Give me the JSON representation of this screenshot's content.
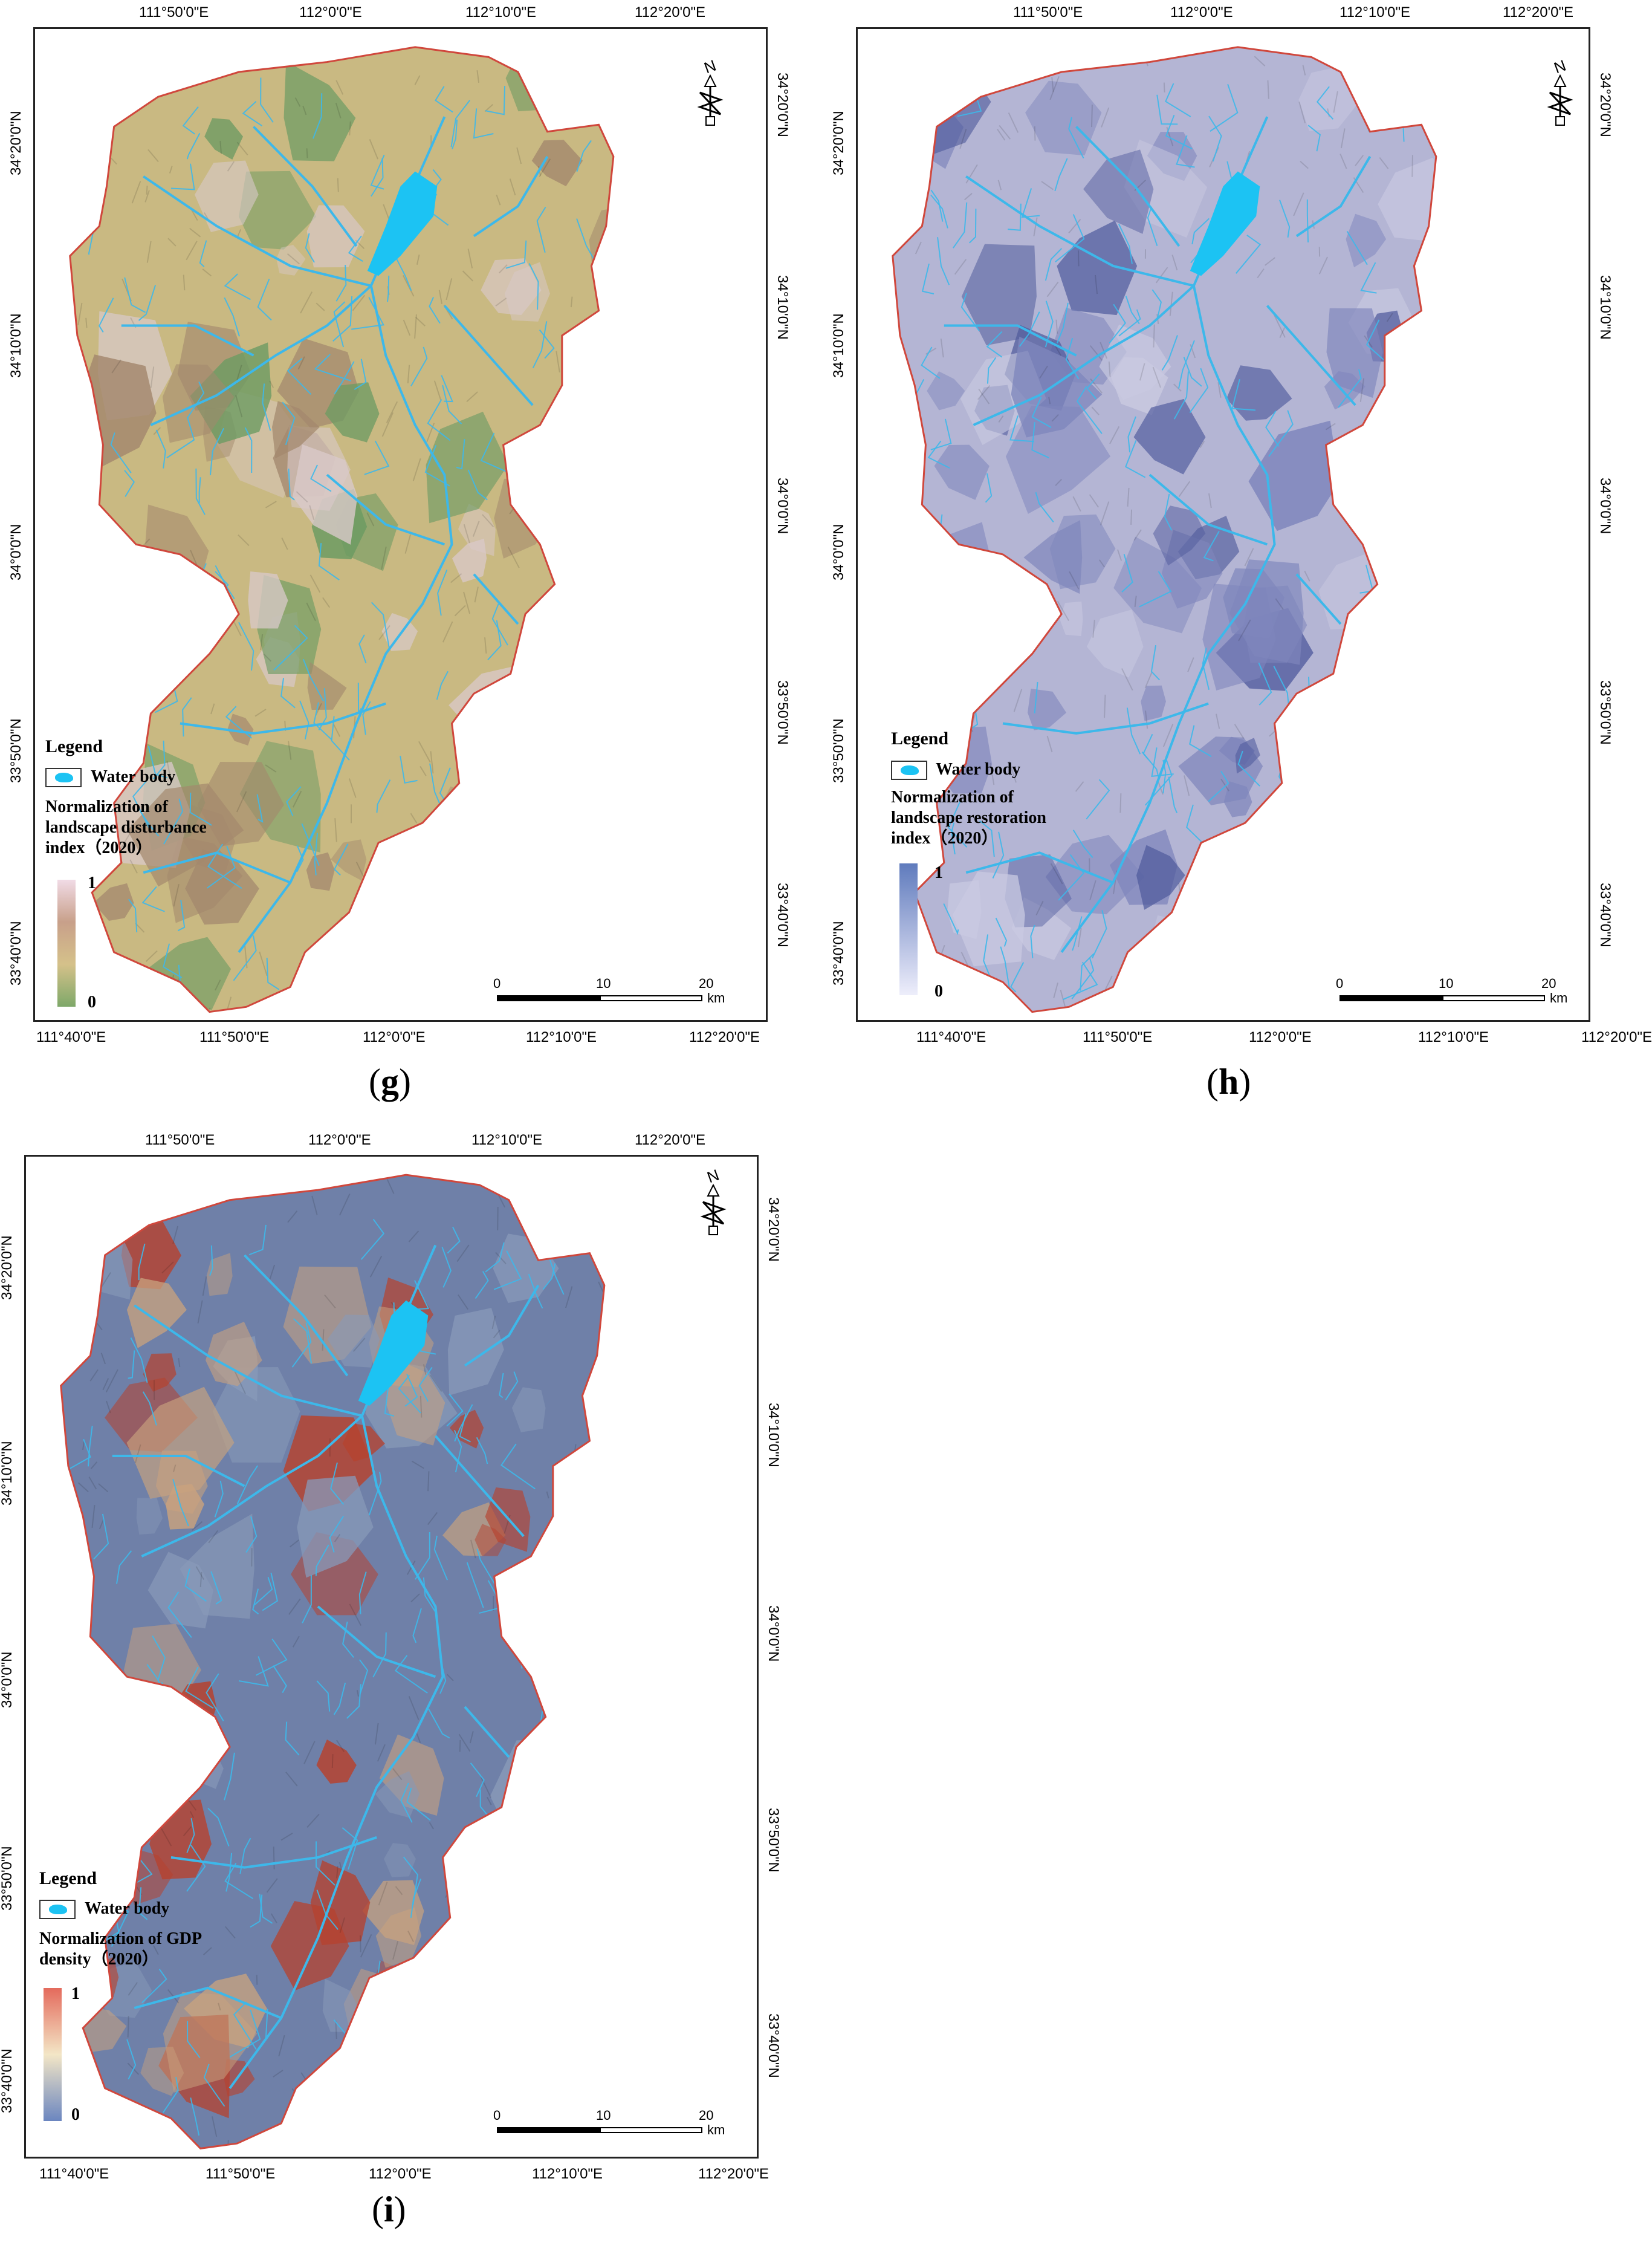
{
  "panels": [
    {
      "id": "g",
      "caption_letter": "g",
      "top_ticks": [
        "111°50'0\"E",
        "112°0'0\"E",
        "112°10'0\"E",
        "112°20'0\"E"
      ],
      "bottom_ticks": [
        "111°40'0\"E",
        "111°50'0\"E",
        "112°0'0\"E",
        "112°10'0\"E",
        "112°20'0\"E"
      ],
      "left_ticks": [
        "34°20'0\"N",
        "34°10'0\"N",
        "34°0'0\"N",
        "33°50'0\"N",
        "33°40'0\"N"
      ],
      "right_ticks": [
        "34°20'0\"N",
        "34°10'0\"N",
        "34°0'0\"N",
        "33°50'0\"N",
        "33°40'0\"N"
      ],
      "legend_title": "Legend",
      "water_label": "Water body",
      "index_title_lines": [
        "Normalization of",
        "landscape disturbance",
        "index（2020）"
      ],
      "ramp_max": "1",
      "ramp_min": "0",
      "ramp_colors": [
        "#f1dbe6",
        "#c8a08a",
        "#d5c18a",
        "#7ea869"
      ],
      "scale": {
        "labels": [
          "0",
          "10",
          "20"
        ],
        "unit": "km"
      },
      "north_label": "N",
      "fill_colors": {
        "base": "#c9b982",
        "patch1": "#a3886d",
        "patch2": "#6d9b63",
        "patch3": "#d9c9c9"
      }
    },
    {
      "id": "h",
      "caption_letter": "h",
      "top_ticks": [
        "111°50'0\"E",
        "112°0'0\"E",
        "112°10'0\"E",
        "112°20'0\"E"
      ],
      "bottom_ticks": [
        "111°40'0\"E",
        "111°50'0\"E",
        "112°0'0\"E",
        "112°10'0\"E",
        "112°20'0\"E"
      ],
      "left_ticks": [
        "34°20'0\"N",
        "34°10'0\"N",
        "34°0'0\"N",
        "33°50'0\"N",
        "33°40'0\"N"
      ],
      "right_ticks": [
        "34°20'0\"N",
        "34°10'0\"N",
        "34°0'0\"N",
        "33°50'0\"N",
        "33°40'0\"N"
      ],
      "legend_title": "Legend",
      "water_label": "Water body",
      "index_title_lines": [
        "Normalization of",
        "landscape restoration",
        "index（2020）"
      ],
      "ramp_max": "1",
      "ramp_min": "0",
      "ramp_colors": [
        "#5f7bbd",
        "#a7b4dc",
        "#eeeefb"
      ],
      "scale": {
        "labels": [
          "0",
          "10",
          "20"
        ],
        "unit": "km"
      },
      "north_label": "N",
      "fill_colors": {
        "base": "#b4b5d4",
        "patch1": "#7f86bc",
        "patch2": "#4f5a9c",
        "patch3": "#c9c9e1"
      }
    },
    {
      "id": "i",
      "caption_letter": "i",
      "top_ticks": [
        "111°50'0\"E",
        "112°0'0\"E",
        "112°10'0\"E",
        "112°20'0\"E"
      ],
      "bottom_ticks": [
        "111°40'0\"E",
        "111°50'0\"E",
        "112°0'0\"E",
        "112°10'0\"E",
        "112°20'0\"E"
      ],
      "left_ticks": [
        "34°20'0\"N",
        "34°10'0\"N",
        "34°0'0\"N",
        "33°50'0\"N",
        "33°40'0\"N"
      ],
      "right_ticks": [
        "34°20'0\"N",
        "34°10'0\"N",
        "34°0'0\"N",
        "33°50'0\"N",
        "33°40'0\"N"
      ],
      "legend_title": "Legend",
      "water_label": "Water body",
      "index_title_lines": [
        "Normalization of GDP",
        "density（2020）"
      ],
      "ramp_max": "1",
      "ramp_min": "0",
      "ramp_colors": [
        "#e46a5c",
        "#f3e6c6",
        "#6b86c0"
      ],
      "scale": {
        "labels": [
          "0",
          "10",
          "20"
        ],
        "unit": "km"
      },
      "north_label": "N",
      "fill_colors": {
        "base": "#6f80a8",
        "patch1": "#c9a27e",
        "patch2": "#b6422f",
        "patch3": "#8899b8"
      }
    }
  ],
  "water_color": "#1cc3f3",
  "river_color": "#3db8ea",
  "boundary_color": "#d0473c"
}
